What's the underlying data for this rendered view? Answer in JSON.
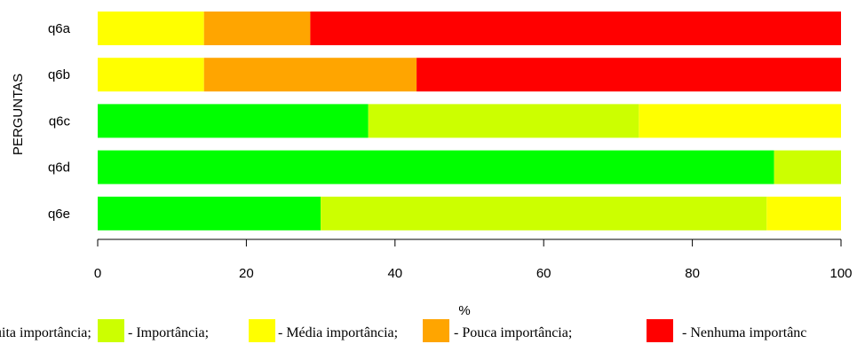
{
  "chart_data": {
    "type": "bar",
    "orientation": "horizontal",
    "stacked": true,
    "categories": [
      "q6a",
      "q6b",
      "q6c",
      "q6d",
      "q6e"
    ],
    "series": [
      {
        "name": "Muita importância",
        "color": "#00ff00",
        "values": [
          0,
          0,
          36.4,
          91.0,
          30.0
        ]
      },
      {
        "name": "Importância",
        "color": "#ccff00",
        "values": [
          0,
          0,
          36.4,
          9.0,
          60.0
        ]
      },
      {
        "name": "Média importância",
        "color": "#ffff00",
        "values": [
          14.3,
          14.3,
          27.2,
          0,
          10.0
        ]
      },
      {
        "name": "Pouca importância",
        "color": "#ffa500",
        "values": [
          14.3,
          28.6,
          0,
          0,
          0
        ]
      },
      {
        "name": "Nenhuma importância",
        "color": "#ff0000",
        "values": [
          71.4,
          57.1,
          0,
          0,
          0
        ]
      }
    ],
    "xlabel": "%",
    "ylabel": "PERGUNTAS",
    "xlim": [
      0,
      100
    ],
    "xticks": [
      0,
      20,
      40,
      60,
      80,
      100
    ],
    "legend": {
      "position": "bottom",
      "text": "uita importância;  - Importância;  - Média importância;  - Pouca importância;  - Nenhuma importânc",
      "entries": [
        {
          "color": "#00ff00",
          "label": "uita importância;"
        },
        {
          "color": "#ccff00",
          "label": " - Importância;"
        },
        {
          "color": "#ffff00",
          "label": " - Média importância;"
        },
        {
          "color": "#ffa500",
          "label": " - Pouca importância;"
        },
        {
          "color": "#ff0000",
          "label": " - Nenhuma importânc"
        }
      ]
    },
    "grid": false
  }
}
